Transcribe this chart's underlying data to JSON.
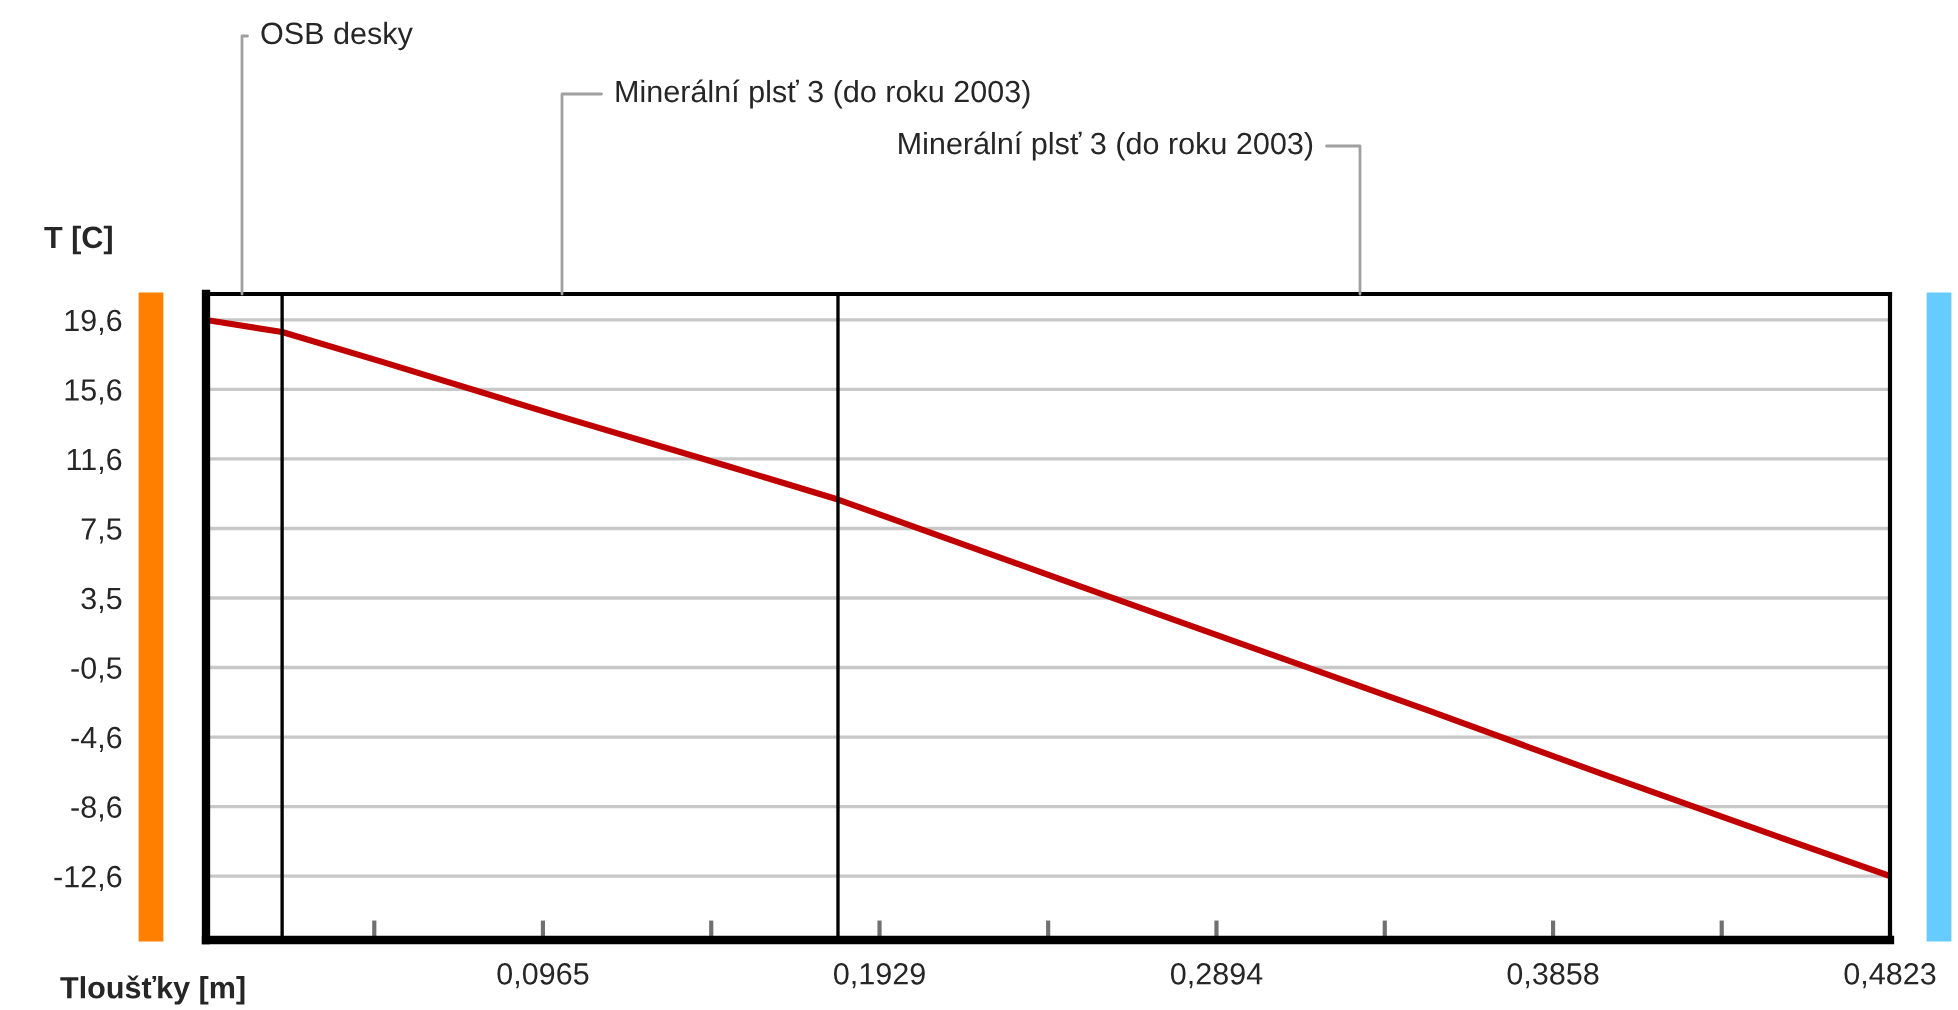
{
  "chart_data": {
    "type": "line",
    "ylabel": "T [C]",
    "xlabel": "Tloušťky [m]",
    "x": [
      0,
      0.0218,
      0.05,
      0.1,
      0.15,
      0.181,
      0.25,
      0.3,
      0.35,
      0.4,
      0.45,
      0.4823
    ],
    "series": [
      {
        "color": "#c00000",
        "values": [
          19.6,
          18.9,
          17.2,
          14.1,
          11.1,
          9.2,
          4.2,
          0.6,
          -3.0,
          -6.7,
          -10.3,
          -12.6
        ]
      }
    ],
    "xlim": [
      0,
      0.4823
    ],
    "ylim": [
      -16.3,
      21.1
    ],
    "xticks": [
      {
        "value": 0.0482,
        "label": null
      },
      {
        "value": 0.0965,
        "label": "0,0965"
      },
      {
        "value": 0.1447,
        "label": null
      },
      {
        "value": 0.1929,
        "label": "0,1929"
      },
      {
        "value": 0.2412,
        "label": null
      },
      {
        "value": 0.2894,
        "label": "0,2894"
      },
      {
        "value": 0.3376,
        "label": null
      },
      {
        "value": 0.3858,
        "label": "0,3858"
      },
      {
        "value": 0.4341,
        "label": null
      },
      {
        "value": 0.4823,
        "label": "0,4823"
      }
    ],
    "yticks": [
      {
        "value": 19.6,
        "label": "19,6"
      },
      {
        "value": 15.575,
        "label": "15,6"
      },
      {
        "value": 11.55,
        "label": "11,6"
      },
      {
        "value": 7.525,
        "label": "7,5"
      },
      {
        "value": 3.5,
        "label": "3,5"
      },
      {
        "value": -0.525,
        "label": "-0,5"
      },
      {
        "value": -4.55,
        "label": "-4,6"
      },
      {
        "value": -8.575,
        "label": "-8,6"
      },
      {
        "value": -12.6,
        "label": "-12,6"
      }
    ],
    "grid": "y",
    "marker": "none",
    "line_style": "solid",
    "legend": false,
    "ref_lines": [
      {
        "axis": "x",
        "value": 0.0218,
        "color": "#000000"
      },
      {
        "axis": "x",
        "value": 0.181,
        "color": "#000000"
      }
    ],
    "annotations": [
      "OSB desky",
      "Minerální plsť 3 (do roku 2003)",
      "Minerální plsť 3 (do roku 2003)"
    ]
  }
}
